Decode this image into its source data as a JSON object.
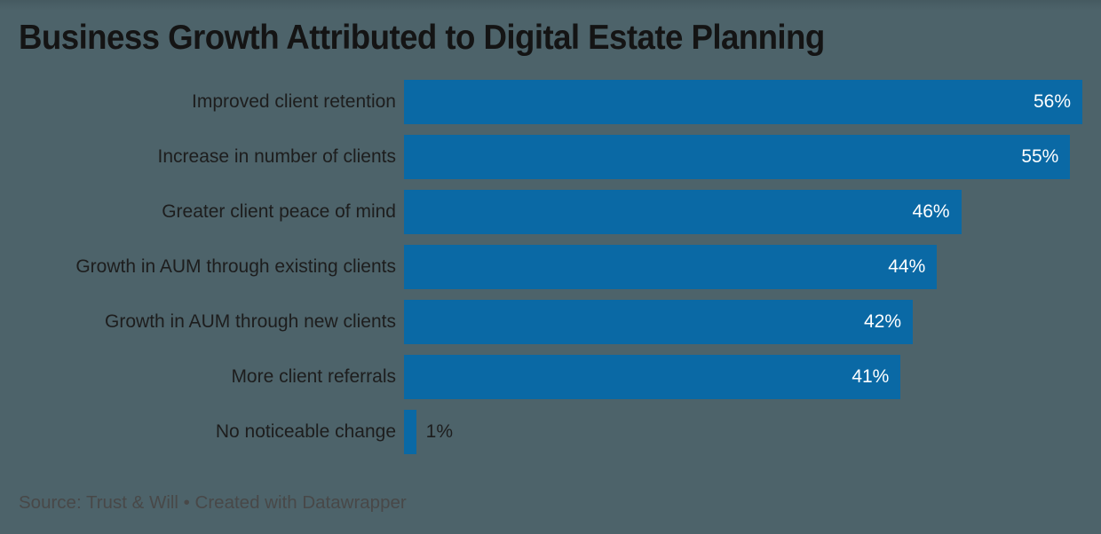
{
  "chart_data": {
    "type": "bar",
    "orientation": "horizontal",
    "title": "Business Growth Attributed to Digital Estate Planning",
    "categories": [
      "Improved client retention",
      "Increase in number of clients",
      "Greater client peace of mind",
      "Growth in AUM through existing clients",
      "Growth in AUM through new clients",
      "More client referrals",
      "No noticeable change"
    ],
    "values": [
      56,
      55,
      46,
      44,
      42,
      41,
      1
    ],
    "value_suffix": "%",
    "xlim": [
      0,
      56
    ],
    "xlabel": "",
    "ylabel": "",
    "grid": false,
    "legend": "none",
    "value_labels": "inside-end",
    "bar_color": "#0a69a5"
  },
  "footer": {
    "source": "Source: Trust & Will • Created with Datawrapper"
  },
  "colors": {
    "background": "#4d636a",
    "title_text": "#141414",
    "label_text": "#1d1d1d",
    "value_text_inside": "#ffffff",
    "value_text_outside": "#1d1d1d",
    "source_text": "#484848"
  }
}
